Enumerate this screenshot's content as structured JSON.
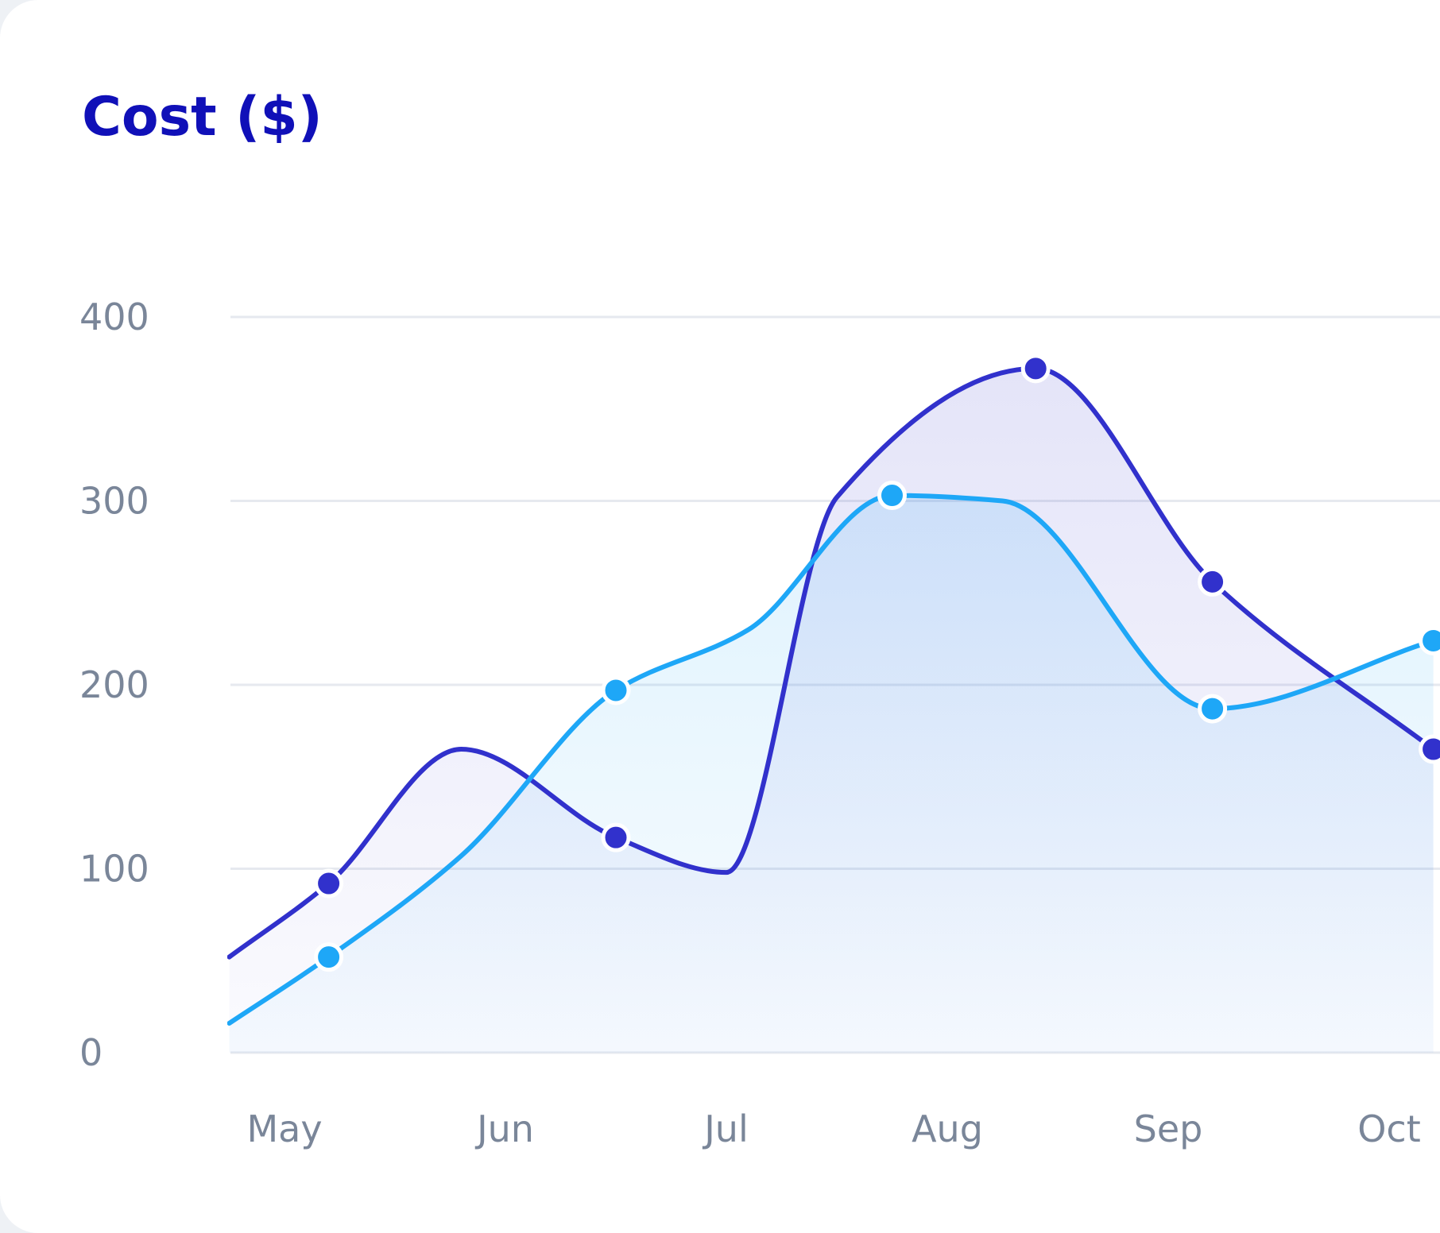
{
  "card": {
    "title": "Cost ($)"
  },
  "chart_data": {
    "type": "area",
    "title": "Cost ($)",
    "xlabel": "",
    "ylabel": "",
    "categories": [
      "May",
      "Jun",
      "Jul",
      "Aug",
      "Sep",
      "Oct"
    ],
    "ylim": [
      0,
      400
    ],
    "yticks": [
      0,
      100,
      200,
      300,
      400
    ],
    "grid": true,
    "legend": "none",
    "colors": {
      "series_dark": "#3131cc",
      "series_light": "#1ea7f7",
      "grid": "#e6e9ef",
      "ticks": "#7a8699"
    },
    "series": [
      {
        "color": "#3131cc",
        "curve": [
          [
            -0.25,
            52
          ],
          [
            0.2,
            92
          ],
          [
            0.8,
            165
          ],
          [
            1.5,
            117
          ],
          [
            2.0,
            98
          ],
          [
            2.5,
            302
          ],
          [
            3.4,
            372
          ],
          [
            4.2,
            256
          ],
          [
            5.2,
            165
          ]
        ],
        "markers": [
          [
            0.2,
            92
          ],
          [
            1.5,
            117
          ],
          [
            3.4,
            372
          ],
          [
            4.2,
            256
          ],
          [
            5.2,
            165
          ]
        ]
      },
      {
        "color": "#1ea7f7",
        "curve": [
          [
            -0.25,
            16
          ],
          [
            0.2,
            52
          ],
          [
            0.8,
            107
          ],
          [
            1.5,
            197
          ],
          [
            2.1,
            230
          ],
          [
            2.75,
            303
          ],
          [
            3.25,
            300
          ],
          [
            4.2,
            187
          ],
          [
            5.2,
            224
          ]
        ],
        "markers": [
          [
            0.2,
            52
          ],
          [
            1.5,
            197
          ],
          [
            2.75,
            303
          ],
          [
            4.2,
            187
          ],
          [
            5.2,
            224
          ]
        ]
      }
    ]
  }
}
